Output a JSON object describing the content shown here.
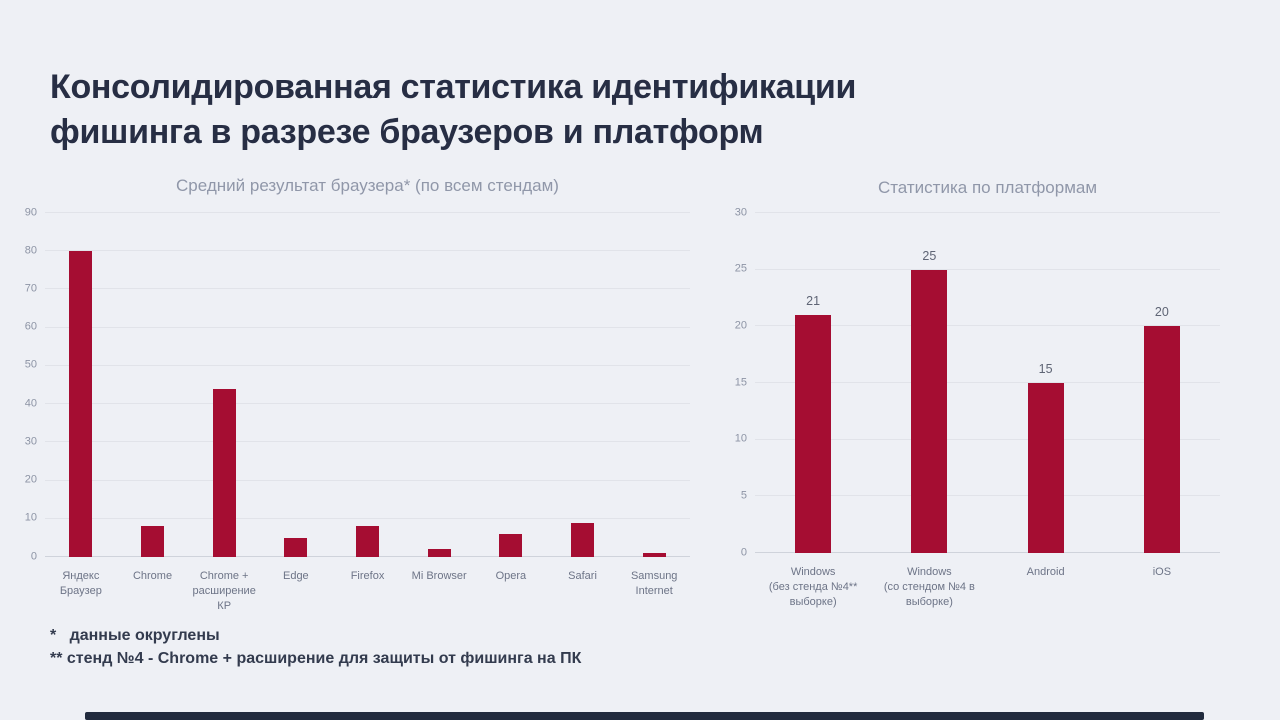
{
  "page": {
    "background_color": "#eef0f5",
    "accent_color": "#a50d32",
    "footer_bar_color": "#212a3d"
  },
  "title": {
    "line1": "Консолидированная статистика идентификации",
    "line2": "фишинга в разрезе браузеров и платформ"
  },
  "footnotes": {
    "line1": "*   данные округлены",
    "line2": "** стенд №4 - Chrome + расширение для защиты от фишинга на ПК"
  },
  "chart_data": [
    {
      "type": "bar",
      "title": "Средний результат браузера* (по всем стендам)",
      "categories": [
        "Яндекс\nБраузер",
        "Chrome",
        "Chrome +\nрасширение\nКР",
        "Edge",
        "Firefox",
        "Mi Browser",
        "Opera",
        "Safari",
        "Samsung\nInternet"
      ],
      "values": [
        80,
        8,
        44,
        5,
        8,
        2,
        6,
        9,
        1
      ],
      "xlabel": "",
      "ylabel": "",
      "ylim": [
        0,
        90
      ],
      "ytick_step": 10,
      "grid": true,
      "legend": false,
      "show_value_labels": false,
      "bar_color": "#a50d32"
    },
    {
      "type": "bar",
      "title": "Статистика по платформам",
      "categories": [
        "Windows\n(без стенда №4**\nвыборке)",
        "Windows\n(со стендом №4  в\nвыборке)",
        "Android",
        "iOS"
      ],
      "values": [
        21,
        25,
        15,
        20
      ],
      "xlabel": "",
      "ylabel": "",
      "ylim": [
        0,
        30
      ],
      "ytick_step": 5,
      "grid": true,
      "legend": false,
      "show_value_labels": true,
      "bar_color": "#a50d32"
    }
  ]
}
